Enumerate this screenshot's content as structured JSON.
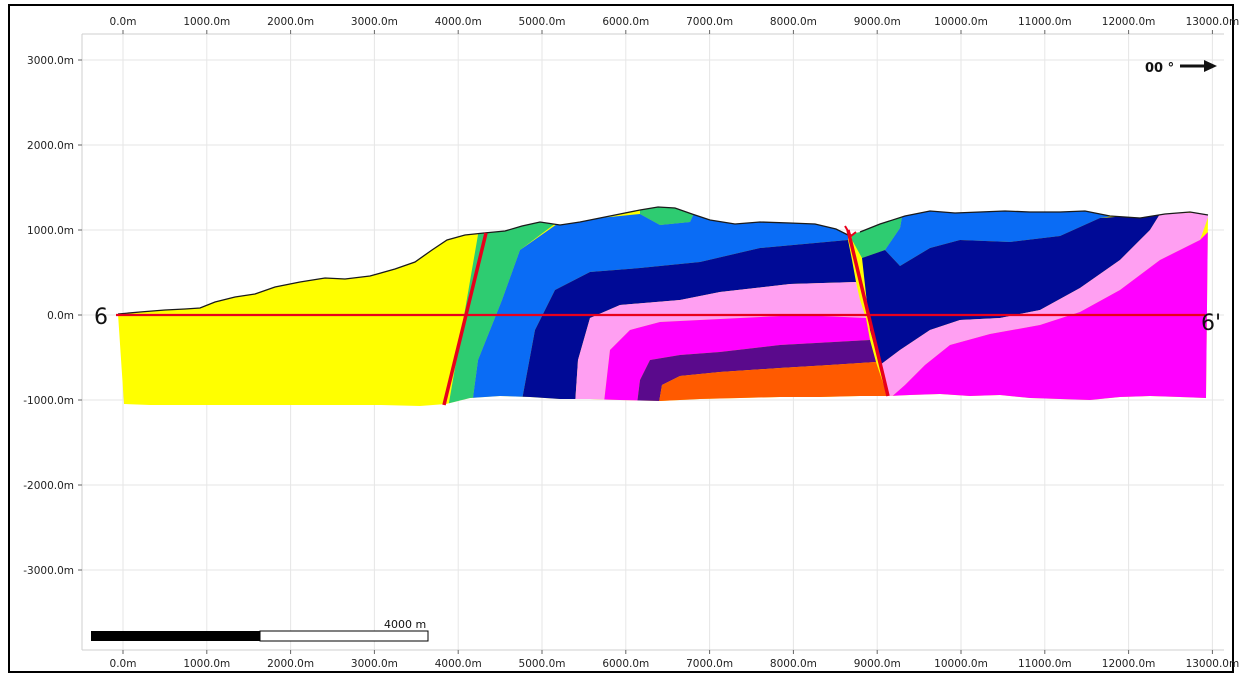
{
  "x_ticks": [
    "0.0m",
    "1000.0m",
    "2000.0m",
    "3000.0m",
    "4000.0m",
    "5000.0m",
    "6000.0m",
    "7000.0m",
    "8000.0m",
    "9000.0m",
    "10000.0m",
    "11000.0m",
    "12000.0m",
    "13000.0m"
  ],
  "y_ticks": [
    "3000.0m",
    "2000.0m",
    "1000.0m",
    "0.0m",
    "-1000.0m",
    "-2000.0m",
    "-3000.0m"
  ],
  "section": {
    "start_label": "6",
    "end_label": "6'"
  },
  "direction": {
    "label": "00 °"
  },
  "scale_bar": {
    "label": "4000 m"
  },
  "colors": {
    "yellow": "#ffff00",
    "green": "#2ecc71",
    "blue": "#0a6cf5",
    "navy": "#000a96",
    "pink_light": "#ff9ff2",
    "magenta": "#ff00ff",
    "purple": "#5a0a8c",
    "orange": "#ff5a00",
    "fault": "#e8001c"
  }
}
